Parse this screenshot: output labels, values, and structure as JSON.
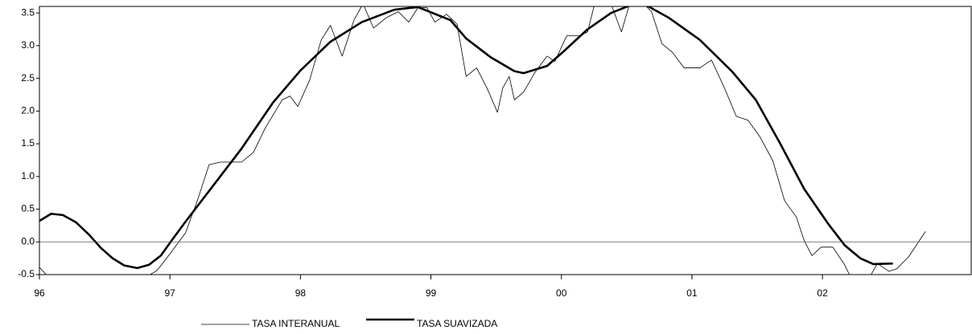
{
  "chart_data": {
    "type": "line",
    "xlim": [
      1996,
      2003.14
    ],
    "ylim": [
      -0.5,
      3.6
    ],
    "xticks": [
      {
        "value": 1996,
        "label": "96"
      },
      {
        "value": 1997,
        "label": "97"
      },
      {
        "value": 1998,
        "label": "98"
      },
      {
        "value": 1999,
        "label": "99"
      },
      {
        "value": 2000,
        "label": "00"
      },
      {
        "value": 2001,
        "label": "01"
      },
      {
        "value": 2002,
        "label": "02"
      }
    ],
    "yticks": [
      -0.5,
      {
        "value": 0,
        "label": "0.0"
      },
      0.5,
      {
        "value": 1,
        "label": "1.0"
      },
      1.5,
      {
        "value": 2,
        "label": "2.0"
      },
      2.5,
      {
        "value": 3,
        "label": "3.0"
      },
      3.5
    ],
    "grid": false,
    "series": [
      {
        "name": "TASA INTERANUAL",
        "color": "#000000",
        "width": 0.8,
        "x": [
          1996.0,
          1996.07,
          1996.5,
          1996.9,
          1996.99,
          1997.12,
          1997.21,
          1997.3,
          1997.39,
          1997.55,
          1997.64,
          1997.73,
          1997.86,
          1997.92,
          1997.98,
          1998.07,
          1998.16,
          1998.23,
          1998.32,
          1998.41,
          1998.48,
          1998.56,
          1998.66,
          1998.75,
          1998.83,
          1998.9,
          1998.97,
          1999.03,
          1999.12,
          1999.2,
          1999.27,
          1999.35,
          1999.43,
          1999.51,
          1999.55,
          1999.6,
          1999.64,
          1999.71,
          1999.8,
          1999.89,
          1999.95,
          2000.04,
          2000.14,
          2000.2,
          2000.27,
          2000.38,
          2000.46,
          2000.54,
          2000.63,
          2000.69,
          2000.77,
          2000.85,
          2000.94,
          2001.06,
          2001.15,
          2001.25,
          2001.34,
          2001.43,
          2001.52,
          2001.62,
          2001.71,
          2001.8,
          2001.86,
          2001.92,
          2001.99,
          2002.08,
          2002.17,
          2002.23,
          2002.33,
          2002.42,
          2002.51,
          2002.57,
          2002.66,
          2002.79
        ],
        "values": [
          -0.39,
          -0.54,
          -0.9,
          -0.44,
          -0.21,
          0.14,
          0.63,
          1.18,
          1.22,
          1.22,
          1.37,
          1.74,
          2.17,
          2.23,
          2.07,
          2.47,
          3.09,
          3.31,
          2.84,
          3.39,
          3.64,
          3.27,
          3.43,
          3.52,
          3.36,
          3.58,
          3.58,
          3.36,
          3.48,
          3.33,
          2.53,
          2.66,
          2.35,
          1.98,
          2.35,
          2.53,
          2.17,
          2.29,
          2.6,
          2.84,
          2.76,
          3.15,
          3.15,
          3.21,
          3.76,
          3.64,
          3.21,
          3.76,
          3.64,
          3.52,
          3.03,
          2.9,
          2.66,
          2.66,
          2.78,
          2.35,
          1.92,
          1.86,
          1.61,
          1.24,
          0.63,
          0.38,
          0.02,
          -0.21,
          -0.08,
          -0.08,
          -0.35,
          -0.6,
          -0.66,
          -0.33,
          -0.45,
          -0.41,
          -0.23,
          0.16
        ]
      },
      {
        "name": "TASA SUAVIZADA",
        "color": "#000000",
        "width": 2.6,
        "x": [
          1996.0,
          1996.09,
          1996.18,
          1996.28,
          1996.38,
          1996.47,
          1996.56,
          1996.65,
          1996.75,
          1996.84,
          1996.93,
          1997.02,
          1997.12,
          1997.55,
          1997.79,
          1998.0,
          1998.23,
          1998.47,
          1998.72,
          1998.9,
          1999.15,
          1999.27,
          1999.46,
          1999.64,
          1999.71,
          1999.89,
          2000.01,
          2000.2,
          2000.38,
          2000.57,
          2000.63,
          2000.82,
          2001.06,
          2001.31,
          2001.49,
          2001.68,
          2001.86,
          2002.05,
          2002.17,
          2002.29,
          2002.39,
          2002.54
        ],
        "values": [
          0.32,
          0.43,
          0.41,
          0.3,
          0.11,
          -0.09,
          -0.25,
          -0.36,
          -0.4,
          -0.35,
          -0.21,
          0.04,
          0.31,
          1.43,
          2.13,
          2.62,
          3.06,
          3.36,
          3.55,
          3.59,
          3.39,
          3.11,
          2.82,
          2.61,
          2.58,
          2.69,
          2.9,
          3.25,
          3.5,
          3.65,
          3.64,
          3.43,
          3.09,
          2.6,
          2.17,
          1.49,
          0.81,
          0.26,
          -0.05,
          -0.25,
          -0.34,
          -0.33
        ]
      }
    ]
  }
}
